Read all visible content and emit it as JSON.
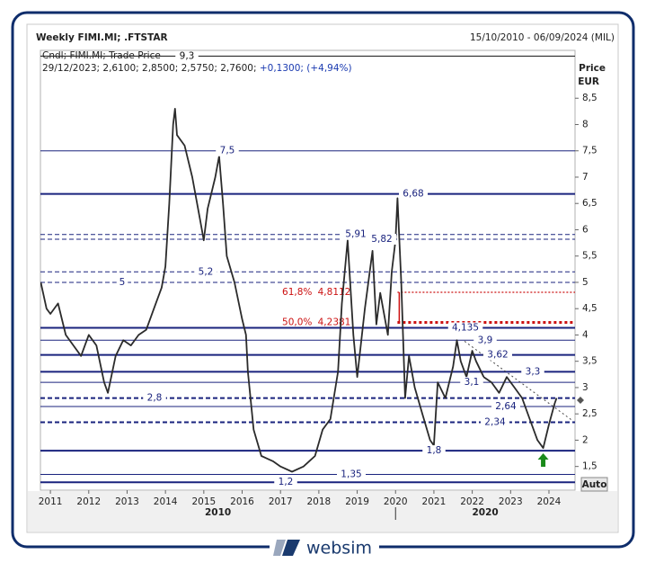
{
  "chart_data": {
    "type": "line",
    "title": "Weekly FIMI.MI; .FTSTAR",
    "subtitle": "15/10/2010 - 06/09/2024 (MIL)",
    "legend_info": "29/12/2023; 2,6100; 2,8500; 2,5750; 2,7600; ",
    "legend_change": "+0,1300; (+4,94%)",
    "ylabel": "Price",
    "yunit": "EUR",
    "xlim": [
      2010.74,
      2024.68
    ],
    "xticks": [
      2011,
      2012,
      2013,
      2014,
      2015,
      2016,
      2017,
      2018,
      2019,
      2020,
      2021,
      2022,
      2023,
      2024
    ],
    "decade_labels": [
      "2010",
      "2020"
    ],
    "decade_divider": 2020,
    "ylim": [
      1.05,
      9.41
    ],
    "yticks": [
      {
        "value": 1.5,
        "label": "1,5"
      },
      2,
      {
        "value": 2.5,
        "label": "2,5"
      },
      3,
      {
        "value": 3.5,
        "label": "3,5"
      },
      4,
      {
        "value": 4.5,
        "label": "4,5"
      },
      5,
      {
        "value": 5.5,
        "label": "5,5"
      },
      6,
      {
        "value": 6.5,
        "label": "6,5"
      },
      7,
      {
        "value": 7.5,
        "label": "7,5"
      },
      8,
      {
        "value": 8.5,
        "label": "8,5"
      }
    ],
    "series": [
      {
        "name": "Cndl; FIMI.MI; Trade Price",
        "color": "#2b2b2b",
        "x": [
          2010.75,
          2010.9,
          2011.0,
          2011.2,
          2011.4,
          2011.6,
          2011.8,
          2012.0,
          2012.2,
          2012.4,
          2012.5,
          2012.7,
          2012.9,
          2013.1,
          2013.3,
          2013.5,
          2013.7,
          2013.9,
          2014.0,
          2014.1,
          2014.2,
          2014.25,
          2014.3,
          2014.5,
          2014.7,
          2014.9,
          2015.0,
          2015.1,
          2015.3,
          2015.4,
          2015.5,
          2015.6,
          2015.8,
          2016.0,
          2016.1,
          2016.15,
          2016.3,
          2016.5,
          2016.8,
          2017.0,
          2017.3,
          2017.6,
          2017.9,
          2018.1,
          2018.3,
          2018.5,
          2018.6,
          2018.75,
          2018.9,
          2019.0,
          2019.2,
          2019.4,
          2019.5,
          2019.6,
          2019.8,
          2019.9,
          2020.0,
          2020.05,
          2020.15,
          2020.25,
          2020.35,
          2020.5,
          2020.7,
          2020.9,
          2021.0,
          2021.1,
          2021.3,
          2021.5,
          2021.6,
          2021.7,
          2021.85,
          2022.0,
          2022.1,
          2022.3,
          2022.5,
          2022.7,
          2022.9,
          2023.1,
          2023.3,
          2023.5,
          2023.7,
          2023.85,
          2024.0,
          2024.15,
          2024.2
        ],
        "values": [
          5.0,
          4.5,
          4.4,
          4.6,
          4.0,
          3.8,
          3.6,
          4.0,
          3.8,
          3.1,
          2.9,
          3.6,
          3.9,
          3.8,
          4.0,
          4.1,
          4.5,
          4.9,
          5.3,
          6.5,
          8.0,
          8.3,
          7.8,
          7.6,
          7.0,
          6.2,
          5.8,
          6.4,
          7.0,
          7.4,
          6.5,
          5.5,
          5.0,
          4.3,
          4.0,
          3.3,
          2.2,
          1.7,
          1.6,
          1.5,
          1.4,
          1.5,
          1.7,
          2.2,
          2.4,
          3.3,
          4.6,
          5.8,
          4.0,
          3.2,
          4.5,
          5.6,
          4.2,
          4.8,
          4.0,
          5.2,
          5.8,
          6.6,
          5.0,
          2.8,
          3.6,
          3.0,
          2.5,
          2.0,
          1.9,
          3.1,
          2.8,
          3.4,
          3.9,
          3.5,
          3.2,
          3.7,
          3.5,
          3.2,
          3.1,
          2.9,
          3.2,
          3.0,
          2.8,
          2.4,
          2.0,
          1.85,
          2.3,
          2.7,
          2.8
        ]
      }
    ],
    "levels": [
      {
        "value": 9.3,
        "label": "9,3",
        "color": "#111111",
        "style": "thin"
      },
      {
        "value": 7.5,
        "label": "7,5",
        "color": "#1a237e",
        "style": "thin"
      },
      {
        "value": 6.68,
        "label": "6,68",
        "color": "#1a237e",
        "style": "thick"
      },
      {
        "value": 5.91,
        "label": "5,91",
        "color": "#1a237e",
        "style": "dashed"
      },
      {
        "value": 5.82,
        "label": "5,82",
        "color": "#1a237e",
        "style": "dashed"
      },
      {
        "value": 5.2,
        "label": "5,2",
        "color": "#1a237e",
        "style": "dashed"
      },
      {
        "value": 5,
        "label": "5",
        "color": "#1a237e",
        "style": "dashed"
      },
      {
        "value": 4.135,
        "label": "4,135",
        "color": "#1a237e",
        "style": "thick"
      },
      {
        "value": 3.9,
        "label": "3,9",
        "color": "#1a237e",
        "style": "thin"
      },
      {
        "value": 3.62,
        "label": "3,62",
        "color": "#1a237e",
        "style": "thick"
      },
      {
        "value": 3.3,
        "label": "3,3",
        "color": "#1a237e",
        "style": "thick"
      },
      {
        "value": 3.1,
        "label": "3,1",
        "color": "#1a237e",
        "style": "thin"
      },
      {
        "value": 2.8,
        "label": "2,8",
        "color": "#1a237e",
        "style": "thickdash"
      },
      {
        "value": 2.64,
        "label": "2,64",
        "color": "#1a237e",
        "style": "thin"
      },
      {
        "value": 2.34,
        "label": "2,34",
        "color": "#1a237e",
        "style": "thickdash"
      },
      {
        "value": 1.8,
        "label": "1,8",
        "color": "#1a237e",
        "style": "thick"
      },
      {
        "value": 1.35,
        "label": "1,35",
        "color": "#1a237e",
        "style": "thin"
      },
      {
        "value": 1.2,
        "label": "1,2",
        "color": "#1a237e",
        "style": "thick"
      }
    ],
    "fibonacci": {
      "x_start": 2020.05,
      "color": "#cc1111",
      "levels": [
        {
          "pct": "61,8%",
          "value": 4.8112,
          "label": "4,8112"
        },
        {
          "pct": "50,0%",
          "value": 4.2381,
          "label": "4,2381"
        }
      ]
    },
    "trendline": {
      "x": [
        2021.8,
        2024.58
      ],
      "values": [
        3.88,
        2.39
      ]
    },
    "signal_arrow": {
      "x": 2023.85,
      "color": "#1a8a1a"
    },
    "last_price": 2.76
  },
  "ui": {
    "auto_button": "Auto",
    "brand": "websim"
  }
}
